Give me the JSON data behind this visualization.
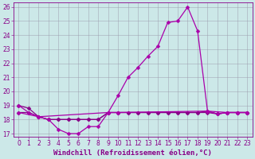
{
  "xlabel": "Windchill (Refroidissement éolien,°C)",
  "bg_color": "#cce8e8",
  "grid_color": "#9999aa",
  "xlim": [
    -0.5,
    23.5
  ],
  "ylim": [
    16.8,
    26.3
  ],
  "yticks": [
    17,
    18,
    19,
    20,
    21,
    22,
    23,
    24,
    25,
    26
  ],
  "xticks": [
    0,
    1,
    2,
    3,
    4,
    5,
    6,
    7,
    8,
    9,
    10,
    11,
    12,
    13,
    14,
    15,
    16,
    17,
    18,
    19,
    20,
    21,
    22,
    23
  ],
  "xlabel_fontsize": 6.5,
  "tick_fontsize": 5.5,
  "line_color_dark": "#880088",
  "line_color_mid": "#aa00aa",
  "line_color_light": "#cc44cc",
  "curve_peak_x": [
    0,
    1,
    2,
    3,
    4,
    5,
    6,
    7,
    8,
    9,
    10,
    11,
    12,
    13,
    14,
    15,
    16,
    17,
    18,
    19,
    20,
    21,
    22,
    23
  ],
  "curve_peak_y": [
    19.0,
    18.5,
    18.2,
    18.0,
    17.3,
    17.0,
    17.0,
    17.5,
    17.5,
    18.5,
    19.7,
    21.0,
    21.7,
    22.5,
    23.2,
    24.9,
    25.0,
    26.0,
    24.3,
    18.6,
    18.4,
    18.5,
    18.5,
    18.5
  ],
  "curve_flat1_x": [
    0,
    1,
    2,
    3,
    4,
    5,
    6,
    7,
    8,
    9,
    10,
    11,
    12,
    13,
    14,
    15,
    16,
    17,
    18,
    19,
    20,
    21,
    22,
    23
  ],
  "curve_flat1_y": [
    18.5,
    18.5,
    18.2,
    18.0,
    18.0,
    18.0,
    18.0,
    18.0,
    18.0,
    18.5,
    18.5,
    18.5,
    18.5,
    18.5,
    18.5,
    18.5,
    18.5,
    18.5,
    18.5,
    18.6,
    18.4,
    18.5,
    18.5,
    18.5
  ],
  "curve_flat2_x": [
    0,
    1,
    2,
    3,
    4,
    5,
    6,
    7,
    8,
    9,
    10,
    11,
    12,
    13,
    14,
    15,
    16,
    17,
    18,
    19,
    20,
    21,
    22,
    23
  ],
  "curve_flat2_y": [
    19.0,
    18.8,
    18.2,
    18.0,
    18.0,
    18.0,
    18.0,
    18.0,
    18.0,
    18.5,
    18.5,
    18.5,
    18.5,
    18.5,
    18.5,
    18.5,
    18.5,
    18.5,
    18.5,
    18.5,
    18.4,
    18.5,
    18.5,
    18.5
  ],
  "curve_flat3_x": [
    0,
    2,
    9,
    10,
    19,
    21,
    22,
    23
  ],
  "curve_flat3_y": [
    18.5,
    18.2,
    18.5,
    18.5,
    18.6,
    18.5,
    18.5,
    18.5
  ],
  "marker_size": 2.5,
  "linewidth": 0.9
}
